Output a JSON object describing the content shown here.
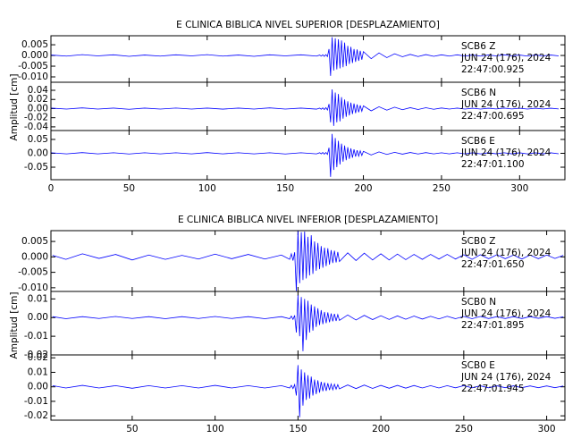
{
  "chart_data": [
    {
      "type": "line",
      "title": "E CLINICA BIBLICA NIVEL SUPERIOR [DESPLAZAMIENTO]",
      "ylabel": "Amplitud [cm]",
      "color": "#0000ff",
      "xlim": [
        0,
        329
      ],
      "xticks": [
        0,
        50,
        100,
        150,
        200,
        250,
        300
      ],
      "x": [
        0,
        10,
        20,
        30,
        40,
        50,
        60,
        70,
        80,
        90,
        100,
        110,
        120,
        130,
        140,
        150,
        160,
        170,
        172,
        173,
        174,
        175,
        176,
        177,
        178,
        179,
        180,
        181,
        182,
        183,
        184,
        185,
        186,
        187,
        188,
        189,
        190,
        191,
        192,
        193,
        194,
        195,
        196,
        197,
        198,
        199,
        200,
        205,
        210,
        215,
        220,
        225,
        230,
        235,
        240,
        245,
        250,
        255,
        260,
        265,
        270,
        275,
        280,
        285,
        290,
        295,
        300,
        305,
        310,
        315,
        320,
        325
      ],
      "panels": [
        {
          "station": "SCB6   Z",
          "date": "JUN 24 (176), 2024",
          "time": "22:47:00.925",
          "ylim": [
            -0.0125,
            0.0092
          ],
          "yticks": [
            0.005,
            {
              "value": 0,
              "label": "0.000"
            },
            -0.005,
            {
              "value": -0.01,
              "label": "-0.010"
            }
          ],
          "values": [
            0.0002,
            -0.0003,
            0.0004,
            -0.0002,
            0.0003,
            -0.0004,
            0.0002,
            -0.0003,
            0.0003,
            -0.0002,
            0.0004,
            -0.0003,
            0.0002,
            -0.0004,
            0.0003,
            -0.0002,
            0.0003,
            -0.0003,
            0.0002,
            -0.0003,
            0.0003,
            -0.0004,
            0.0004,
            -0.0005,
            0.003,
            -0.0095,
            0.0085,
            -0.007,
            0.008,
            -0.0065,
            0.0075,
            -0.006,
            0.007,
            -0.0055,
            0.006,
            -0.005,
            0.0045,
            -0.004,
            0.004,
            -0.0035,
            0.003,
            -0.003,
            0.0028,
            -0.0025,
            0.0022,
            -0.002,
            0.0018,
            -0.0015,
            0.0012,
            -0.001,
            0.0008,
            -0.0006,
            0.0005,
            -0.0005,
            0.0004,
            -0.0004,
            0.0003,
            -0.0003,
            0.0003,
            -0.0003,
            0.0002,
            -0.0003,
            0.0002,
            -0.0002,
            0.0003,
            -0.0002,
            0.0002,
            -0.0003,
            0.0002,
            -0.0002,
            0.0002,
            -0.0002
          ]
        },
        {
          "station": "SCB6   N",
          "date": "JUN 24 (176), 2024",
          "time": "22:47:00.695",
          "ylim": [
            -0.048,
            0.0576
          ],
          "yticks": [
            0.04,
            0.02,
            {
              "value": 0,
              "label": "0.00"
            },
            -0.02,
            -0.04
          ],
          "values": [
            0.001,
            -0.001,
            0.0015,
            -0.001,
            0.001,
            -0.0015,
            0.001,
            -0.001,
            0.0012,
            -0.001,
            0.001,
            -0.0012,
            0.001,
            -0.001,
            0.0015,
            -0.001,
            0.001,
            -0.0012,
            0.001,
            -0.0015,
            0.0015,
            -0.002,
            0.002,
            -0.003,
            0.01,
            -0.03,
            0.042,
            -0.038,
            0.035,
            -0.03,
            0.032,
            -0.028,
            0.025,
            -0.022,
            0.02,
            -0.018,
            0.016,
            -0.015,
            0.013,
            -0.012,
            0.011,
            -0.01,
            0.009,
            -0.008,
            0.007,
            -0.006,
            0.006,
            -0.005,
            0.004,
            -0.0035,
            0.003,
            -0.0025,
            0.002,
            -0.002,
            0.0018,
            -0.0015,
            0.0012,
            -0.001,
            0.001,
            -0.001,
            0.0008,
            -0.001,
            0.0008,
            -0.0008,
            0.001,
            -0.0008,
            0.0008,
            -0.001,
            0.0008,
            -0.0008,
            0.0008,
            -0.0008
          ]
        },
        {
          "station": "SCB6   E",
          "date": "JUN 24 (176), 2024",
          "time": "22:47:01.100",
          "ylim": [
            -0.095,
            0.082
          ],
          "yticks": [
            0.05,
            {
              "value": 0,
              "label": "0.00"
            },
            -0.05
          ],
          "values": [
            0.002,
            -0.002,
            0.0025,
            -0.002,
            0.002,
            -0.0025,
            0.002,
            -0.002,
            0.002,
            -0.002,
            0.0025,
            -0.002,
            0.002,
            -0.002,
            0.002,
            -0.0025,
            0.002,
            -0.002,
            0.002,
            -0.002,
            0.003,
            -0.003,
            0.003,
            -0.004,
            0.02,
            -0.085,
            0.07,
            -0.06,
            0.055,
            -0.05,
            0.045,
            -0.04,
            0.035,
            -0.03,
            0.028,
            -0.025,
            0.022,
            -0.02,
            0.018,
            -0.016,
            0.014,
            -0.012,
            0.011,
            -0.01,
            0.009,
            -0.008,
            0.007,
            -0.006,
            0.005,
            -0.004,
            0.0035,
            -0.003,
            0.003,
            -0.0025,
            0.0025,
            -0.002,
            0.002,
            -0.002,
            0.002,
            -0.002,
            0.0018,
            -0.002,
            0.0018,
            -0.0018,
            0.002,
            -0.0018,
            0.0018,
            -0.002,
            0.0018,
            -0.0018,
            0.0018,
            -0.0018
          ]
        }
      ]
    },
    {
      "type": "line",
      "title": "E CLINICA BIBLICA NIVEL INFERIOR [DESPLAZAMIENTO]",
      "ylabel": "Amplitud [cm]",
      "color": "#0000ff",
      "xlim": [
        1,
        311
      ],
      "xticks": [
        50,
        100,
        150,
        200,
        250,
        300
      ],
      "x": [
        2,
        10,
        20,
        30,
        40,
        50,
        60,
        70,
        80,
        90,
        100,
        110,
        120,
        130,
        140,
        145,
        146,
        147,
        148,
        149,
        150,
        151,
        152,
        153,
        154,
        155,
        156,
        157,
        158,
        159,
        160,
        161,
        162,
        163,
        164,
        165,
        166,
        167,
        168,
        169,
        170,
        171,
        172,
        173,
        174,
        175,
        180,
        185,
        190,
        195,
        200,
        205,
        210,
        215,
        220,
        225,
        230,
        235,
        240,
        245,
        250,
        255,
        260,
        265,
        270,
        275,
        280,
        285,
        290,
        295,
        300,
        305,
        310
      ],
      "panels": [
        {
          "station": "SCB0   Z",
          "date": "JUN 24 (176), 2024",
          "time": "22:47:01.650",
          "ylim": [
            -0.0112,
            0.0085
          ],
          "yticks": [
            0.005,
            {
              "value": 0,
              "label": "0.000"
            },
            -0.005,
            {
              "value": -0.01,
              "label": "-0.010"
            }
          ],
          "values": [
            0.0005,
            -0.0008,
            0.001,
            -0.0005,
            0.0008,
            -0.001,
            0.0006,
            -0.0008,
            0.0005,
            -0.0007,
            0.0009,
            -0.0006,
            0.0008,
            -0.0007,
            0.0006,
            -0.0008,
            0.001,
            -0.0012,
            0.0015,
            -0.011,
            0.0084,
            -0.0085,
            0.008,
            -0.0075,
            0.0082,
            -0.007,
            0.0065,
            -0.006,
            0.007,
            -0.0055,
            0.005,
            -0.0045,
            0.0045,
            -0.004,
            0.0035,
            -0.0035,
            0.003,
            -0.003,
            0.0028,
            -0.0025,
            0.0022,
            -0.002,
            0.002,
            -0.0018,
            0.0016,
            -0.0015,
            0.0013,
            -0.0012,
            0.0012,
            -0.001,
            0.001,
            -0.001,
            0.0009,
            -0.0009,
            0.0008,
            -0.0008,
            0.0008,
            -0.0007,
            0.0008,
            -0.0007,
            0.0007,
            -0.0008,
            0.0007,
            -0.0006,
            0.0007,
            -0.0006,
            0.0006,
            -0.0007,
            0.0006,
            -0.0006,
            0.0006,
            -0.0005,
            0.0005
          ]
        },
        {
          "station": "SCB0   N",
          "date": "JUN 24 (176), 2024",
          "time": "22:47:01.895",
          "ylim": [
            -0.02,
            0.014
          ],
          "yticks": [
            0.01,
            {
              "value": 0,
              "label": "0.00"
            },
            -0.01,
            -0.02
          ],
          "values": [
            0.0005,
            -0.0006,
            0.0005,
            -0.0005,
            0.0006,
            -0.0005,
            0.0005,
            -0.0006,
            0.0005,
            -0.0005,
            0.0006,
            -0.0005,
            0.0005,
            -0.0006,
            0.0005,
            -0.0006,
            0.0008,
            -0.001,
            0.0012,
            -0.008,
            0.012,
            -0.01,
            0.011,
            -0.018,
            0.01,
            -0.012,
            0.009,
            -0.008,
            0.007,
            -0.007,
            0.006,
            -0.005,
            0.005,
            -0.004,
            0.004,
            -0.0035,
            0.003,
            -0.003,
            0.0028,
            -0.0025,
            0.0022,
            -0.002,
            0.002,
            -0.0018,
            0.0016,
            -0.0015,
            0.0014,
            -0.0013,
            0.0012,
            -0.0011,
            0.001,
            -0.001,
            0.0009,
            -0.0009,
            0.0008,
            -0.0008,
            0.0007,
            -0.0007,
            0.0007,
            -0.0006,
            0.0006,
            -0.0006,
            0.0006,
            -0.0005,
            0.0005,
            -0.0005,
            0.0005,
            -0.0005,
            0.0005,
            -0.0004,
            0.0005,
            -0.0004,
            0.0004
          ]
        },
        {
          "station": "SCB0   E",
          "date": "JUN 24 (176), 2024",
          "time": "22:47:01.945",
          "ylim": [
            -0.023,
            0.022
          ],
          "yticks": [
            0.02,
            0.01,
            {
              "value": 0,
              "label": "0.00"
            },
            -0.01,
            -0.02
          ],
          "values": [
            0.0008,
            -0.0008,
            0.001,
            -0.0008,
            0.0008,
            -0.001,
            0.0008,
            -0.0008,
            0.0008,
            -0.0008,
            0.001,
            -0.0008,
            0.0008,
            -0.0008,
            0.0008,
            -0.0008,
            0.001,
            -0.0012,
            0.0015,
            -0.006,
            0.015,
            -0.021,
            0.012,
            -0.013,
            0.01,
            -0.009,
            0.008,
            -0.008,
            0.007,
            -0.006,
            0.005,
            -0.005,
            0.0045,
            -0.004,
            0.0035,
            -0.003,
            0.003,
            -0.0028,
            0.0025,
            -0.0022,
            0.002,
            -0.002,
            0.0018,
            -0.0016,
            0.0015,
            -0.0014,
            0.0013,
            -0.0012,
            0.0012,
            -0.0011,
            0.001,
            -0.001,
            0.001,
            -0.0009,
            0.0009,
            -0.0008,
            0.0008,
            -0.0008,
            0.0008,
            -0.0007,
            0.0008,
            -0.0007,
            0.0007,
            -0.0007,
            0.0007,
            -0.0006,
            0.0007,
            -0.0006,
            0.0006,
            -0.0006,
            0.0006,
            -0.0006,
            0.0006
          ]
        }
      ]
    }
  ]
}
